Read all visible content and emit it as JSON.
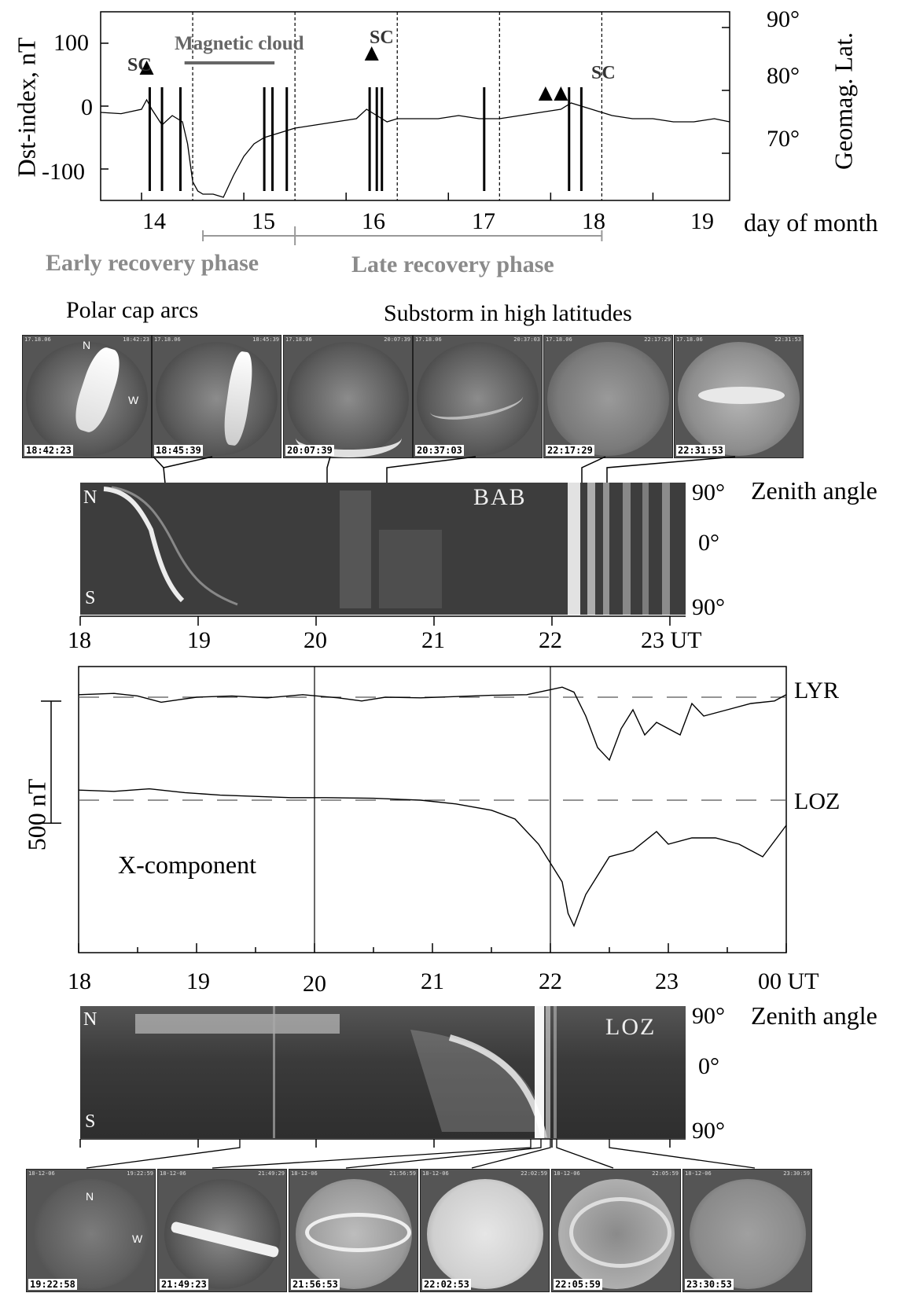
{
  "dst_panel": {
    "ylabel": "Dst-index, nT",
    "right_label": "Geomag. Lat.",
    "xlabel": "day of month",
    "y_ticks": [
      "100",
      "0",
      "-100"
    ],
    "right_ticks": [
      "90°",
      "80°",
      "70°"
    ],
    "x_ticks": [
      "14",
      "15",
      "16",
      "17",
      "18",
      "19"
    ],
    "sc_labels": [
      "SC",
      "SC",
      "SC"
    ],
    "magnetic_cloud_label": "Magnetic cloud",
    "early_phase_label": "Early recovery phase",
    "late_phase_label": "Late recovery phase"
  },
  "section_titles": {
    "polar_cap": "Polar cap arcs",
    "substorm": "Substorm in high latitudes"
  },
  "bab_thumbs": [
    {
      "time": "18:42:23",
      "hdr_left": "17.18.06",
      "hdr_right": "18:42:23"
    },
    {
      "time": "18:45:39",
      "hdr_left": "17.18.06",
      "hdr_right": "18:45:39"
    },
    {
      "time": "20:07:39",
      "hdr_left": "17.18.06",
      "hdr_right": "20:07:39"
    },
    {
      "time": "20:37:03",
      "hdr_left": "17.18.06",
      "hdr_right": "20:37:03"
    },
    {
      "time": "22:17:29",
      "hdr_left": "17.18.06",
      "hdr_right": "22:17:29"
    },
    {
      "time": "22:31:53",
      "hdr_left": "17.18.06",
      "hdr_right": "22:31:53"
    }
  ],
  "thumb_dir_labels": {
    "n": "N",
    "w": "W"
  },
  "bab_keogram": {
    "station": "BAB",
    "north": "N",
    "south": "S",
    "right_ticks": [
      "90°",
      "0°",
      "90°"
    ],
    "right_label": "Zenith angle",
    "x_ticks": [
      "18",
      "19",
      "20",
      "21",
      "22",
      "23 UT"
    ]
  },
  "mag_panel": {
    "series_labels": [
      "LYR",
      "LOZ"
    ],
    "scale_label": "500 nT",
    "component_label": "X-component",
    "x_ticks": [
      "18",
      "19",
      "20",
      "21",
      "22",
      "23",
      "00 UT"
    ]
  },
  "loz_keogram": {
    "station": "LOZ",
    "north": "N",
    "south": "S",
    "right_ticks": [
      "90°",
      "0°",
      "90°"
    ],
    "right_label": "Zenith angle"
  },
  "loz_thumbs": [
    {
      "time": "19:22:58",
      "hdr_left": "18-12-06",
      "hdr_right": "19:22:59"
    },
    {
      "time": "21:49:23",
      "hdr_left": "18-12-06",
      "hdr_right": "21:49:29"
    },
    {
      "time": "21:56:53",
      "hdr_left": "18-12-06",
      "hdr_right": "21:56:59"
    },
    {
      "time": "22:02:53",
      "hdr_left": "18-12-06",
      "hdr_right": "22:02:59"
    },
    {
      "time": "22:05:59",
      "hdr_left": "18-12-06",
      "hdr_right": "22:05:59"
    },
    {
      "time": "23:30:53",
      "hdr_left": "18-12-06",
      "hdr_right": "23:30:59"
    }
  ],
  "chart_data": [
    {
      "type": "line",
      "ylabel": "Dst-index, nT",
      "xlabel": "day of month",
      "x_range": [
        13.6,
        19.75
      ],
      "ylim": [
        -150,
        150
      ],
      "series": [
        {
          "x": [
            13.6,
            13.8,
            14.0,
            14.05,
            14.1,
            14.2,
            14.3,
            14.4,
            14.45,
            14.5,
            14.55,
            14.6,
            14.7,
            14.8,
            14.9,
            15.0,
            15.1,
            15.2,
            15.3,
            15.4,
            15.5,
            15.7,
            15.9,
            16.1,
            16.2,
            16.3,
            16.4,
            16.5,
            16.7,
            16.9,
            17.1,
            17.3,
            17.5,
            17.7,
            17.9,
            18.1,
            18.2,
            18.3,
            18.4,
            18.6,
            18.8,
            19.0,
            19.2,
            19.4,
            19.6,
            19.75
          ],
          "y": [
            -10,
            -12,
            -5,
            10,
            -5,
            -30,
            -15,
            -25,
            -60,
            -120,
            -135,
            -140,
            -140,
            -145,
            -110,
            -80,
            -60,
            -50,
            -45,
            -40,
            -35,
            -30,
            -25,
            -20,
            -5,
            -15,
            -25,
            -20,
            -20,
            -20,
            -15,
            -20,
            -20,
            -15,
            -10,
            -5,
            5,
            0,
            -5,
            -15,
            -20,
            -20,
            -25,
            -25,
            -20,
            -25
          ]
        }
      ],
      "vertical_markers_x": [
        14.08,
        14.2,
        14.38,
        15.2,
        15.28,
        15.42,
        16.23,
        16.3,
        16.35,
        17.35,
        18.18,
        18.3
      ],
      "sc_events_x": [
        14.05,
        16.25,
        17.95,
        18.1
      ],
      "magnetic_cloud_x": [
        14.42,
        15.3
      ],
      "right_axis": {
        "label": "Geomag. Lat.",
        "ticks": [
          "70°",
          "80°",
          "90°"
        ]
      }
    },
    {
      "type": "line",
      "title": "X-component",
      "x_ticks": [
        "18",
        "19",
        "20",
        "21",
        "22",
        "23",
        "00 UT"
      ],
      "x_range": [
        18,
        24
      ],
      "scale_bar_nT": 500,
      "series": [
        {
          "name": "LYR",
          "x": [
            18.0,
            18.3,
            18.5,
            18.7,
            19.0,
            19.3,
            19.6,
            19.9,
            20.2,
            20.4,
            20.6,
            20.9,
            21.2,
            21.5,
            21.8,
            22.0,
            22.1,
            22.2,
            22.3,
            22.4,
            22.5,
            22.6,
            22.7,
            22.8,
            22.9,
            23.0,
            23.1,
            23.2,
            23.3,
            23.5,
            23.7,
            23.9,
            24.0
          ],
          "y": [
            20,
            30,
            10,
            -40,
            0,
            10,
            -5,
            20,
            -5,
            -30,
            0,
            -5,
            5,
            15,
            20,
            60,
            80,
            40,
            -150,
            -400,
            -500,
            -250,
            -100,
            -300,
            -200,
            -250,
            -300,
            -50,
            -150,
            -100,
            -50,
            -30,
            20
          ]
        },
        {
          "name": "LOZ",
          "x": [
            18.0,
            18.3,
            18.6,
            18.9,
            19.2,
            19.5,
            19.8,
            20.1,
            20.5,
            20.9,
            21.2,
            21.5,
            21.7,
            21.9,
            22.0,
            22.1,
            22.15,
            22.2,
            22.3,
            22.5,
            22.7,
            22.9,
            23.0,
            23.2,
            23.4,
            23.6,
            23.8,
            24.0
          ],
          "y": [
            80,
            70,
            90,
            60,
            40,
            30,
            20,
            20,
            15,
            0,
            -30,
            -80,
            -150,
            -350,
            -500,
            -650,
            -900,
            -1000,
            -750,
            -450,
            -400,
            -250,
            -350,
            -300,
            -300,
            -350,
            -450,
            -200
          ]
        }
      ]
    }
  ]
}
